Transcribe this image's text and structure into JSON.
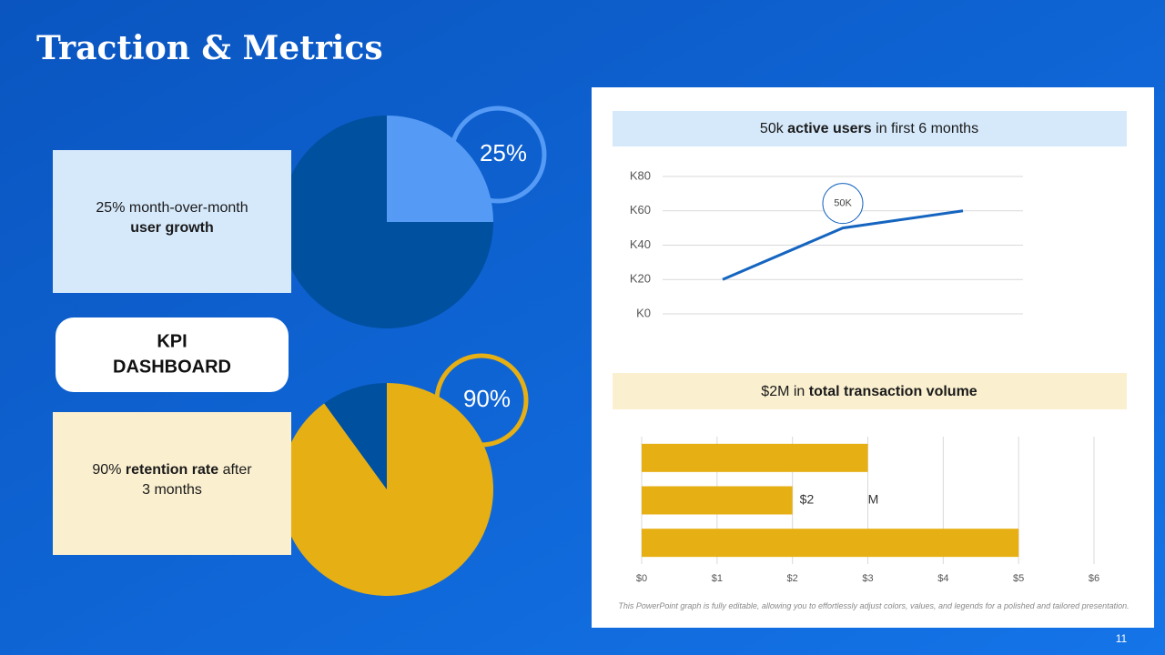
{
  "title": "Traction & Metrics",
  "page_number": 11,
  "kpi_label": [
    "KPI",
    "DASHBOARD"
  ],
  "cards": [
    {
      "lines": [
        [
          {
            "text": "25% month-over-month"
          }
        ],
        [
          {
            "text": "user growth",
            "bold": true
          }
        ]
      ]
    },
    {
      "lines": [
        [
          {
            "text": "90% "
          },
          {
            "text": "retention rate",
            "bold": true
          },
          {
            "text": " after"
          }
        ],
        [
          {
            "text": "3 months"
          }
        ]
      ]
    }
  ],
  "footnote": "This PowerPoint graph is fully editable, allowing you to effortlessly adjust colors, values, and legends for a polished and tailored presentation.",
  "chart_data": [
    {
      "type": "pie",
      "values": [
        25,
        75
      ],
      "colors": [
        "#559BF5",
        "#0050A0"
      ],
      "value_labels": [
        "25%",
        null
      ],
      "callout_color": "#559BF5"
    },
    {
      "type": "pie",
      "values": [
        90,
        10
      ],
      "colors": [
        "#E6AF14",
        "#0050A0"
      ],
      "value_labels": [
        "90%",
        null
      ],
      "callout_color": "#E6AF14"
    },
    {
      "type": "line",
      "title": [
        {
          "text": "50k "
        },
        {
          "text": "active users",
          "bold": true
        },
        {
          "text": " in first 6 months"
        }
      ],
      "categories": [
        null,
        null,
        null
      ],
      "values": [
        20000,
        50000,
        60000
      ],
      "value_labels": [
        null,
        "50K",
        null
      ],
      "color": "#1565C0",
      "ylim": [
        0,
        80000
      ],
      "yticks": [
        {
          "value": 0,
          "label": "K0"
        },
        {
          "value": 20000,
          "label": "K20"
        },
        {
          "value": 40000,
          "label": "K40"
        },
        {
          "value": 60000,
          "label": "K60"
        },
        {
          "value": 80000,
          "label": "K80"
        }
      ],
      "grid": true
    },
    {
      "type": "hbar",
      "title": [
        {
          "text": "$2M"
        },
        {
          "text": " in "
        },
        {
          "text": "total transaction volume",
          "bold": true
        }
      ],
      "categories": [
        null,
        null,
        null
      ],
      "values": [
        3,
        2,
        5
      ],
      "value_labels": [
        null,
        "$2",
        null
      ],
      "annotation": "M",
      "color": "#E6AF14",
      "xlim": [
        0,
        6
      ],
      "xticks": [
        {
          "value": 0,
          "label": "$0"
        },
        {
          "value": 1,
          "label": "$1"
        },
        {
          "value": 2,
          "label": "$2"
        },
        {
          "value": 3,
          "label": "$3"
        },
        {
          "value": 4,
          "label": "$4"
        },
        {
          "value": 5,
          "label": "$5"
        },
        {
          "value": 6,
          "label": "$6"
        }
      ],
      "grid": true
    }
  ]
}
